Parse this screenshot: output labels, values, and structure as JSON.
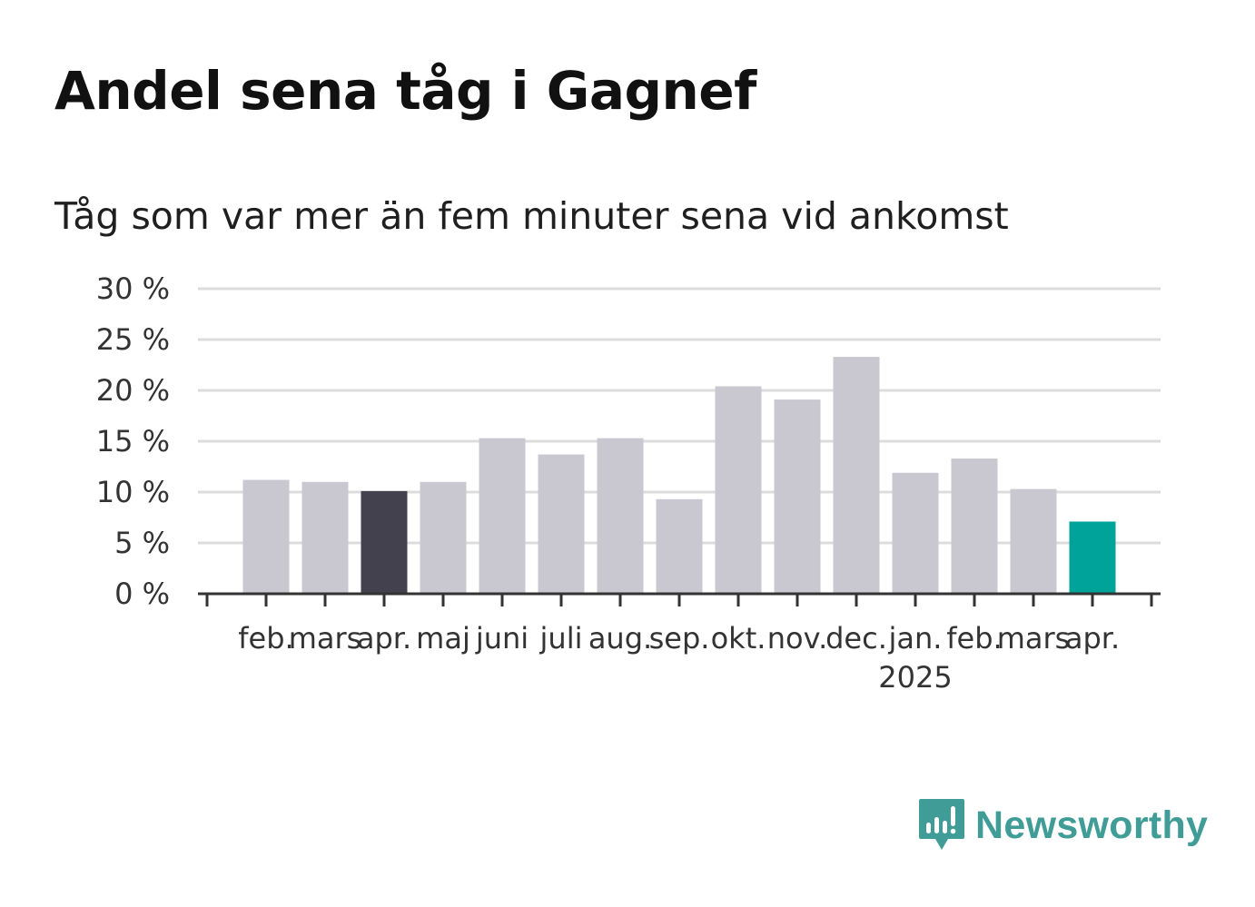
{
  "title": "Andel sena tåg i Gagnef",
  "subtitle": "Tåg som var mer än fem minuter sena vid ankomst",
  "colors": {
    "bar_default": "#c9c8d1",
    "bar_highlight_previous": "#42414d",
    "bar_highlight_latest": "#00a39a",
    "grid": "#dcdcdc",
    "axis": "#333333",
    "brand": "#3f9c96"
  },
  "chart_data": {
    "type": "bar",
    "categories": [
      "feb.",
      "mars",
      "apr.",
      "maj",
      "juni",
      "juli",
      "aug.",
      "sep.",
      "okt.",
      "nov.",
      "dec.",
      "jan.",
      "feb.",
      "mars",
      "apr."
    ],
    "values": [
      11.2,
      11.0,
      10.1,
      11.0,
      15.3,
      13.7,
      15.3,
      9.3,
      20.4,
      19.1,
      23.3,
      11.9,
      13.3,
      10.3,
      7.1
    ],
    "highlight": {
      "2": "bar_highlight_previous",
      "14": "bar_highlight_latest"
    },
    "year_label": {
      "index": 11,
      "text": "2025"
    },
    "yticks": [
      0,
      5,
      10,
      15,
      20,
      25,
      30
    ],
    "ytick_labels": [
      "0 %",
      "5 %",
      "10 %",
      "15 %",
      "20 %",
      "25 %",
      "30 %"
    ],
    "ylim": [
      0,
      30
    ],
    "grid": true,
    "xlabel": "",
    "ylabel": ""
  },
  "logo": {
    "text": "Newsworthy",
    "icon": "bar-chart-speech-bubble-icon"
  }
}
